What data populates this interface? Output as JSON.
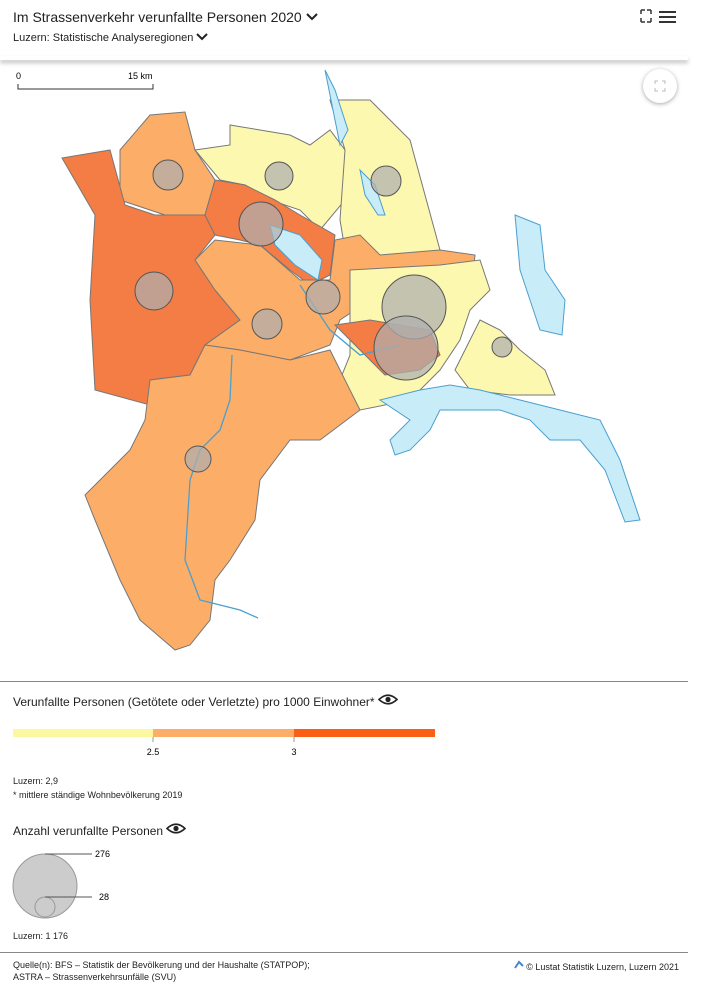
{
  "header": {
    "title": "Im Strassenverkehr verunfallte Personen 2020",
    "subtitle": "Luzern: Statistische Analyseregionen"
  },
  "map": {
    "scale": {
      "start": "0",
      "end": "15 km"
    }
  },
  "legend": {
    "color": {
      "title": "Verunfallte Personen (Getötete oder Verletzte) pro 1000 Einwohner*",
      "breaks": [
        "2.5",
        "3"
      ],
      "total": "Luzern: 2,9",
      "note": "* mittlere ständige Wohnbevölkerung 2019"
    },
    "size": {
      "title": "Anzahl verunfallte Personen",
      "labels": [
        "276",
        "28"
      ],
      "total": "Luzern: 1 176"
    }
  },
  "footer": {
    "source": [
      "Quelle(n): BFS – Statistik der Bevölkerung und der Haushalte (STATPOP);",
      "ASTRA – Strassenverkehrsunfälle (SVU)"
    ],
    "credit": "© Lustat Statistik Luzern, Luzern 2021"
  }
}
